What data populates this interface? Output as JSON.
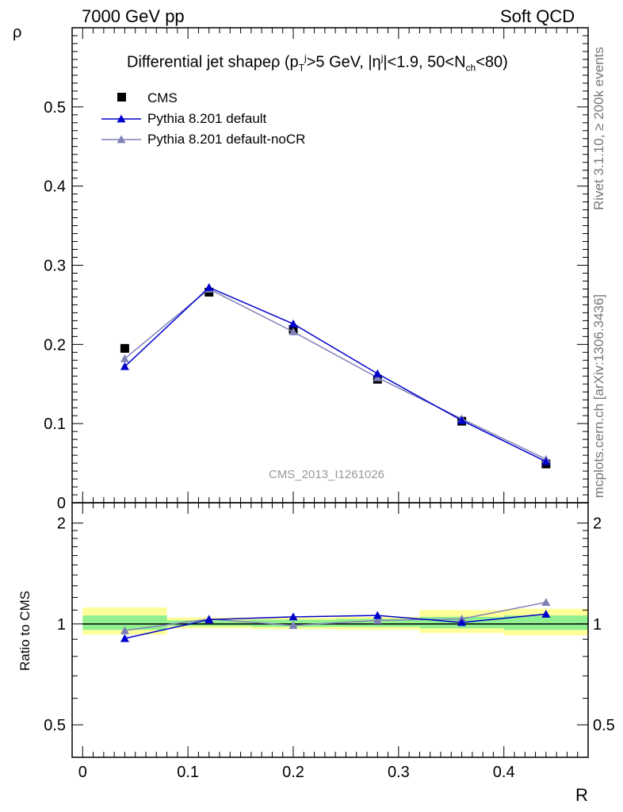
{
  "header": {
    "left": "7000 GeV pp",
    "right": "Soft QCD"
  },
  "side_text": {
    "rivet": "Rivet 3.1.10, ≥ 200k events",
    "mcplots": "mcplots.cern.ch [arXiv:1306.3436]"
  },
  "title": {
    "main": "Differential jet shapeρ (p",
    "pt_sub": "T",
    "pt_sup": "j",
    "after_pt": ">5 GeV, |η",
    "eta_sup": "j",
    "after_eta": "|<1.9, 50<N",
    "nch_sub": "ch",
    "end": "<80)"
  },
  "watermark": "CMS_2013_I1261026",
  "axis_labels": {
    "top_y": "ρ",
    "bottom_y": "Ratio to CMS",
    "x": "R"
  },
  "colors": {
    "cms": "#000000",
    "pythia_default": "#0000cc",
    "pythia_nocr": "#8080b8",
    "band_inner": "#90f090",
    "band_outer": "#ffff99"
  },
  "chart_data": [
    {
      "type": "scatter",
      "panel": "main",
      "xlim": [
        -0.01,
        0.48
      ],
      "ylim": [
        0,
        0.6
      ],
      "yticks_labeled": [
        "0",
        "0.1",
        "0.2",
        "0.3",
        "0.4",
        "0.5"
      ],
      "yticks_values": [
        0,
        0.1,
        0.2,
        0.3,
        0.4,
        0.5
      ],
      "x": [
        0.04,
        0.12,
        0.2,
        0.28,
        0.36,
        0.44
      ],
      "series": [
        {
          "name": "CMS",
          "marker": "square",
          "values": [
            0.195,
            0.266,
            0.219,
            0.156,
            0.103,
            0.049
          ]
        },
        {
          "name": "Pythia 8.201 default",
          "marker": "triangle",
          "line": true,
          "values": [
            0.172,
            0.272,
            0.226,
            0.163,
            0.104,
            0.052
          ]
        },
        {
          "name": "Pythia 8.201 default-noCR",
          "marker": "triangle",
          "line": true,
          "values": [
            0.182,
            0.27,
            0.216,
            0.158,
            0.106,
            0.055
          ]
        }
      ],
      "legend": "top-left"
    },
    {
      "type": "line",
      "panel": "ratio",
      "xlim": [
        -0.01,
        0.48
      ],
      "ylim": [
        0.4,
        2.3
      ],
      "log_y": true,
      "yticks_labeled": [
        "0.5",
        "1",
        "2"
      ],
      "yticks_values": [
        0.5,
        1,
        2
      ],
      "xticks_labeled": [
        "0",
        "0.1",
        "0.2",
        "0.3",
        "0.4"
      ],
      "xticks_values": [
        0,
        0.1,
        0.2,
        0.3,
        0.4
      ],
      "bins": [
        {
          "lo": 0.0,
          "hi": 0.08,
          "inner": [
            0.96,
            1.06
          ],
          "outer": [
            0.93,
            1.12
          ]
        },
        {
          "lo": 0.08,
          "hi": 0.16,
          "inner": [
            0.985,
            1.025
          ],
          "outer": [
            0.97,
            1.045
          ]
        },
        {
          "lo": 0.16,
          "hi": 0.24,
          "inner": [
            0.98,
            1.03
          ],
          "outer": [
            0.965,
            1.045
          ]
        },
        {
          "lo": 0.24,
          "hi": 0.32,
          "inner": [
            0.98,
            1.035
          ],
          "outer": [
            0.96,
            1.05
          ]
        },
        {
          "lo": 0.32,
          "hi": 0.4,
          "inner": [
            0.97,
            1.05
          ],
          "outer": [
            0.94,
            1.1
          ]
        },
        {
          "lo": 0.4,
          "hi": 0.48,
          "inner": [
            0.96,
            1.06
          ],
          "outer": [
            0.925,
            1.11
          ]
        }
      ],
      "x": [
        0.04,
        0.12,
        0.2,
        0.28,
        0.36,
        0.44
      ],
      "series": [
        {
          "name": "Pythia 8.201 default",
          "values": [
            0.905,
            1.03,
            1.05,
            1.06,
            1.01,
            1.07
          ]
        },
        {
          "name": "Pythia 8.201 default-noCR",
          "values": [
            0.955,
            1.035,
            0.99,
            1.025,
            1.035,
            1.16
          ]
        }
      ]
    }
  ]
}
